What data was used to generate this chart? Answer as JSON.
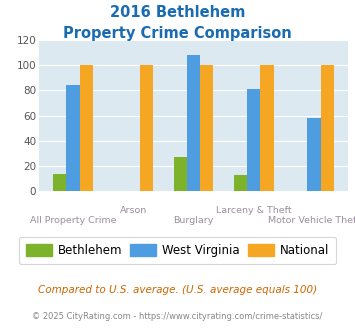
{
  "title_line1": "2016 Bethlehem",
  "title_line2": "Property Crime Comparison",
  "categories": [
    "All Property Crime",
    "Arson",
    "Burglary",
    "Larceny & Theft",
    "Motor Vehicle Theft"
  ],
  "stagger": [
    false,
    true,
    false,
    true,
    false
  ],
  "bethlehem": [
    14,
    0,
    27,
    13,
    0
  ],
  "west_virginia": [
    84,
    0,
    108,
    81,
    58
  ],
  "national": [
    100,
    100,
    100,
    100,
    100
  ],
  "bethlehem_color": "#7db32b",
  "west_virginia_color": "#4d9de0",
  "national_color": "#f5a623",
  "ylim": [
    0,
    120
  ],
  "yticks": [
    0,
    20,
    40,
    60,
    80,
    100,
    120
  ],
  "background_color": "#dce9f0",
  "title_color": "#1a6bb0",
  "xlabel_color": "#9b8ea0",
  "footnote1": "Compared to U.S. average. (U.S. average equals 100)",
  "footnote2": "© 2025 CityRating.com - https://www.cityrating.com/crime-statistics/",
  "footnote1_color": "#cc6600",
  "footnote2_color": "#888888",
  "footnote2_link_color": "#4d9de0"
}
